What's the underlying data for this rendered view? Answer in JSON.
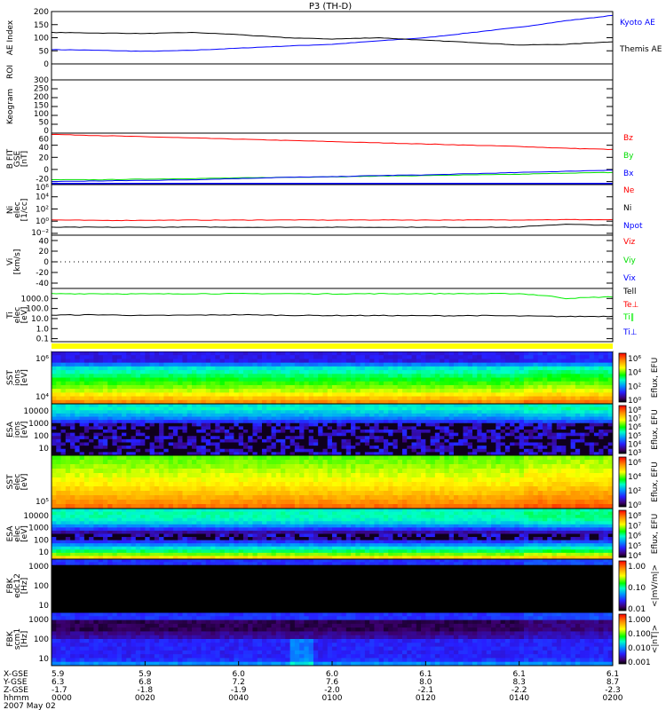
{
  "title": "P3 (TH-D)",
  "colors": {
    "kyoto": "#0000ff",
    "themis": "#000000",
    "bz": "#ff0000",
    "by": "#00dd00",
    "bx": "#0000ff",
    "ne": "#ff0000",
    "ni": "#000000",
    "npot": "#0000ff",
    "tell": "#00ee00",
    "teperp": "#ff0000",
    "tipar": "#00ee00",
    "tiperp": "#0000ff"
  },
  "chart_data": [
    {
      "type": "line",
      "id": "ae",
      "ylabel": "AE Index",
      "ylim": [
        0,
        200
      ],
      "yticks": [
        "0",
        "50",
        "100",
        "150",
        "200"
      ],
      "ytick_values": [
        0,
        50,
        100,
        150,
        200
      ],
      "scale": "linear",
      "x_minutes": [
        0,
        10,
        20,
        30,
        40,
        50,
        60,
        70,
        80,
        90,
        100,
        110,
        120
      ],
      "series": [
        {
          "name": "Kyoto AE",
          "color": "#0000ff",
          "values": [
            55,
            52,
            48,
            52,
            60,
            68,
            75,
            88,
            100,
            120,
            140,
            165,
            185
          ]
        },
        {
          "name": "Themis AE",
          "color": "#000000",
          "values": [
            120,
            118,
            116,
            120,
            112,
            100,
            95,
            100,
            90,
            82,
            72,
            75,
            85
          ]
        }
      ]
    },
    {
      "type": "line",
      "id": "roi",
      "ylabel": "ROI",
      "ylim": [
        0,
        1
      ],
      "yticks": [],
      "ytick_values": [],
      "scale": "linear",
      "series": []
    },
    {
      "type": "line",
      "id": "keogram",
      "ylabel": "Keogram",
      "ylim": [
        0,
        300
      ],
      "yticks": [
        "0",
        "50",
        "100",
        "150",
        "200",
        "250",
        "300"
      ],
      "ytick_values": [
        0,
        50,
        100,
        150,
        200,
        250,
        300
      ],
      "scale": "linear",
      "series": []
    },
    {
      "type": "line",
      "id": "bfit",
      "ylabel": "B FIT\nGSE\n[nT]",
      "ylim": [
        -25,
        60
      ],
      "yticks": [
        "-20",
        "0",
        "20",
        "40",
        "60"
      ],
      "ytick_values": [
        -20,
        0,
        20,
        40,
        60
      ],
      "scale": "linear",
      "x_minutes": [
        0,
        10,
        20,
        30,
        40,
        50,
        60,
        70,
        80,
        90,
        100,
        110,
        120
      ],
      "series": [
        {
          "name": "Bz",
          "color": "#ff0000",
          "values": [
            58,
            56,
            54,
            52,
            50,
            48,
            46,
            44,
            42,
            40,
            38,
            35,
            33
          ]
        },
        {
          "name": "By",
          "color": "#00dd00",
          "values": [
            -17,
            -17,
            -16,
            -15,
            -14,
            -13,
            -12,
            -11,
            -10,
            -9,
            -8,
            -6,
            -5
          ]
        },
        {
          "name": "Bx",
          "color": "#0000ff",
          "values": [
            -20,
            -19,
            -18,
            -17,
            -15,
            -13,
            -12,
            -10,
            -9,
            -7,
            -5,
            -3,
            -1
          ]
        }
      ]
    },
    {
      "type": "line",
      "id": "ni",
      "ylabel": "Ni\nelec\n[1/cc]",
      "ylim": [
        0.005,
        1000000
      ],
      "yticks": [
        "10⁻²",
        "10⁰",
        "10²",
        "10⁴",
        "10⁶"
      ],
      "ytick_values": [
        0.01,
        1,
        100,
        10000,
        1000000
      ],
      "scale": "log",
      "x_minutes": [
        0,
        10,
        20,
        30,
        40,
        50,
        60,
        70,
        80,
        90,
        100,
        110,
        120
      ],
      "series": [
        {
          "name": "Ne",
          "color": "#ff0000",
          "values": [
            1.6,
            1.3,
            1.4,
            1.5,
            1.5,
            1.6,
            1.5,
            1.6,
            1.5,
            1.6,
            1.6,
            1.8,
            1.7
          ]
        },
        {
          "name": "Ni",
          "color": "#000000",
          "values": [
            0.1,
            0.1,
            0.1,
            0.11,
            0.1,
            0.1,
            0.1,
            0.1,
            0.1,
            0.1,
            0.1,
            0.3,
            0.2
          ]
        },
        {
          "name": "Npot",
          "color": "#0000ff",
          "values": []
        }
      ]
    },
    {
      "type": "line",
      "id": "vi",
      "ylabel": "Vi\n[km/s]",
      "ylim": [
        -50,
        50
      ],
      "yticks": [
        "-40",
        "-20",
        "0",
        "20",
        "40"
      ],
      "ytick_values": [
        -40,
        -20,
        0,
        20,
        40
      ],
      "scale": "linear",
      "series": [
        {
          "name": "Viz",
          "color": "#ff0000",
          "values": []
        },
        {
          "name": "Viy",
          "color": "#00dd00",
          "values": []
        },
        {
          "name": "Vix",
          "color": "#0000ff",
          "values": []
        }
      ]
    },
    {
      "type": "line",
      "id": "ti",
      "ylabel": "Ti\nelec\n[eV]",
      "ylim": [
        0.05,
        10000
      ],
      "yticks": [
        "0.1",
        "1.0",
        "10.0",
        "100.0",
        "1000.0"
      ],
      "ytick_values": [
        0.1,
        1,
        10,
        100,
        1000
      ],
      "scale": "log",
      "x_minutes": [
        0,
        10,
        20,
        30,
        40,
        50,
        60,
        70,
        80,
        90,
        100,
        110,
        120
      ],
      "series": [
        {
          "name": "Tell",
          "color": "#00ee00",
          "values": [
            3000,
            3000,
            2800,
            3000,
            3000,
            3000,
            2900,
            3000,
            3000,
            3000,
            3000,
            1000,
            1500
          ]
        },
        {
          "name": "Te⊥",
          "color": "#ff0000",
          "values": []
        },
        {
          "name": "Ti‖",
          "color": "#00ee00",
          "values": []
        },
        {
          "name": "Ti⊥",
          "color": "#0000ff",
          "values": []
        },
        {
          "name": "Ti",
          "color": "#000000",
          "values": [
            22,
            24,
            20,
            22,
            24,
            21,
            20,
            20,
            19,
            20,
            18,
            16,
            17
          ]
        }
      ]
    },
    {
      "type": "heatmap",
      "id": "sst_ion",
      "ylabel": "SST\nions\n[eV]",
      "yticks": [
        "10⁴",
        "10⁶"
      ],
      "colorbar": {
        "label": "Eflux, EFU",
        "ticks": [
          "10⁰",
          "10²",
          "10⁴",
          "10⁶"
        ]
      },
      "profile": [
        0.18,
        0.18,
        0.18,
        0.3,
        0.42,
        0.46,
        0.5,
        0.54,
        0.58,
        0.62,
        0.66,
        0.72,
        0.78,
        0.84
      ]
    },
    {
      "type": "heatmap",
      "id": "esa_ion",
      "ylabel": "ESA\nions\n[eV]",
      "yticks": [
        "10",
        "100",
        "1000",
        "10000"
      ],
      "colorbar": {
        "label": "Eflux, EFU",
        "ticks": [
          "10³",
          "10⁴",
          "10⁵",
          "10⁶",
          "10⁷",
          "10⁸"
        ]
      },
      "profile": [
        0.42,
        0.44,
        0.4,
        0.36,
        0.3,
        0.22,
        0.08,
        0.08,
        0.08,
        0.08,
        0.08,
        0.08,
        0.08,
        0.08,
        0.08,
        0.08
      ]
    },
    {
      "type": "heatmap",
      "id": "sst_elec",
      "ylabel": "SST\nelec\n[eV]",
      "yticks": [
        "10⁵"
      ],
      "colorbar": {
        "label": "Eflux, EFU",
        "ticks": [
          "10⁰",
          "10²",
          "10⁴",
          "10⁶"
        ]
      },
      "profile": [
        0.6,
        0.62,
        0.64,
        0.66,
        0.68,
        0.7,
        0.72,
        0.75,
        0.78,
        0.81,
        0.84,
        0.88
      ]
    },
    {
      "type": "heatmap",
      "id": "esa_elec",
      "ylabel": "ESA\nelec\n[eV]",
      "yticks": [
        "10",
        "100",
        "1000",
        "10000"
      ],
      "colorbar": {
        "label": "Eflux, EFU",
        "ticks": [
          "10⁴",
          "10⁵",
          "10⁶",
          "10⁷",
          "10⁸"
        ]
      },
      "profile": [
        0.44,
        0.46,
        0.46,
        0.44,
        0.4,
        0.32,
        0.22,
        0.12,
        0.06,
        0.1,
        0.22,
        0.32,
        0.42,
        0.5,
        0.62,
        0.74
      ]
    },
    {
      "type": "heatmap",
      "id": "fbk_edc12",
      "ylabel": "FBK\nedc12\n[Hz]",
      "yticks": [
        "10",
        "100",
        "1000"
      ],
      "colorbar": {
        "label": "<|mV/m|>",
        "ticks": [
          "0.01",
          "0.10",
          "1.00"
        ]
      },
      "profile": [
        0.22,
        0.22,
        0,
        0,
        0,
        0,
        0,
        0,
        0,
        0,
        0,
        0,
        0,
        0,
        0,
        0,
        0,
        0
      ]
    },
    {
      "type": "heatmap",
      "id": "fbk_scm1",
      "ylabel": "FBK\nscm1\n[Hz]",
      "yticks": [
        "10",
        "100",
        "1000"
      ],
      "colorbar": {
        "label": "<|nT|>",
        "ticks": [
          "0.001",
          "0.010",
          "0.100",
          "1.000"
        ]
      },
      "profile": [
        0.22,
        0.22,
        0.06,
        0.06,
        0.06,
        0.1,
        0.12,
        0.2,
        0.2,
        0.2,
        0.2,
        0.2,
        0.22,
        0.32
      ]
    }
  ],
  "legends": {
    "ae": [
      "Kyoto AE",
      "Themis AE"
    ],
    "bfit": [
      "Bz",
      "By",
      "Bx"
    ],
    "ni": [
      "Ne",
      "Ni",
      "Npot"
    ],
    "vi": [
      "Viz",
      "Viy",
      "Vix"
    ],
    "ti": [
      "Tell",
      "Te⊥",
      "Ti‖",
      "Ti⊥"
    ]
  },
  "xaxis": {
    "row_labels": [
      "X-GSE",
      "Y-GSE",
      "Z-GSE",
      "hhmm",
      "2007 May 02"
    ],
    "ticks": [
      {
        "x": "5.9",
        "y": "6.3",
        "z": "-1.7",
        "t": "0000"
      },
      {
        "x": "5.9",
        "y": "6.8",
        "z": "-1.8",
        "t": "0020"
      },
      {
        "x": "6.0",
        "y": "7.2",
        "z": "-1.9",
        "t": "0040"
      },
      {
        "x": "6.0",
        "y": "7.6",
        "z": "-2.0",
        "t": "0100"
      },
      {
        "x": "6.1",
        "y": "8.0",
        "z": "-2.1",
        "t": "0120"
      },
      {
        "x": "6.1",
        "y": "8.3",
        "z": "-2.2",
        "t": "0140"
      },
      {
        "x": "6.1",
        "y": "8.7",
        "z": "-2.3",
        "t": "0200"
      }
    ]
  }
}
